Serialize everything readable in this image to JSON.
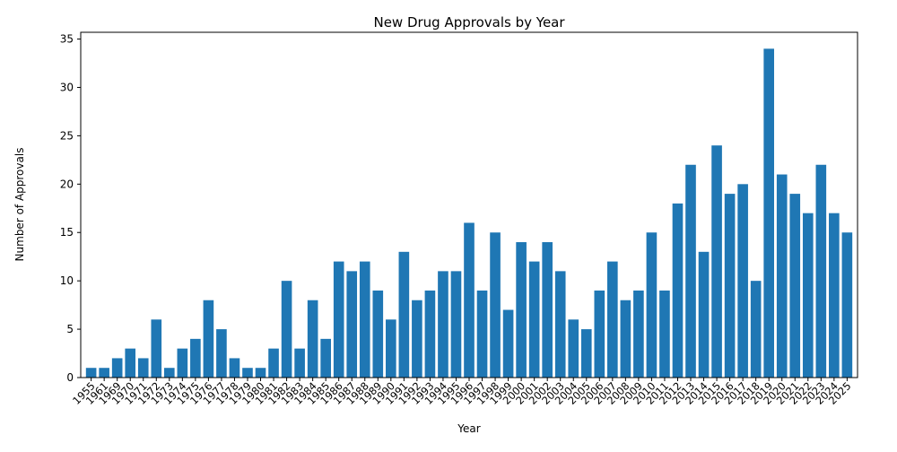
{
  "colors": {
    "bar": "#1f77b4",
    "axis": "#000000",
    "background": "#ffffff"
  },
  "chart_data": {
    "type": "bar",
    "title": "New Drug Approvals by Year",
    "xlabel": "Year",
    "ylabel": "Number of Approvals",
    "ylim": [
      0,
      35.7
    ],
    "yticks": [
      0,
      5,
      10,
      15,
      20,
      25,
      30,
      35
    ],
    "grid": false,
    "legend": "none",
    "categories": [
      "1955",
      "1961",
      "1969",
      "1970",
      "1971",
      "1972",
      "1973",
      "1974",
      "1975",
      "1976",
      "1977",
      "1978",
      "1979",
      "1980",
      "1981",
      "1982",
      "1983",
      "1984",
      "1985",
      "1986",
      "1987",
      "1988",
      "1989",
      "1990",
      "1991",
      "1992",
      "1993",
      "1994",
      "1995",
      "1996",
      "1997",
      "1998",
      "1999",
      "2000",
      "2001",
      "2002",
      "2003",
      "2004",
      "2005",
      "2006",
      "2007",
      "2008",
      "2009",
      "2010",
      "2011",
      "2012",
      "2013",
      "2014",
      "2015",
      "2016",
      "2017",
      "2018",
      "2019",
      "2020",
      "2021",
      "2022",
      "2023",
      "2024",
      "2025"
    ],
    "values": [
      1,
      1,
      2,
      3,
      2,
      6,
      1,
      3,
      4,
      8,
      5,
      2,
      1,
      1,
      3,
      10,
      3,
      8,
      4,
      12,
      11,
      12,
      9,
      6,
      13,
      8,
      9,
      11,
      11,
      16,
      9,
      15,
      7,
      14,
      12,
      14,
      11,
      6,
      5,
      9,
      12,
      8,
      9,
      15,
      9,
      18,
      22,
      13,
      24,
      19,
      20,
      10,
      34,
      21,
      19,
      17,
      22,
      17,
      15
    ]
  }
}
